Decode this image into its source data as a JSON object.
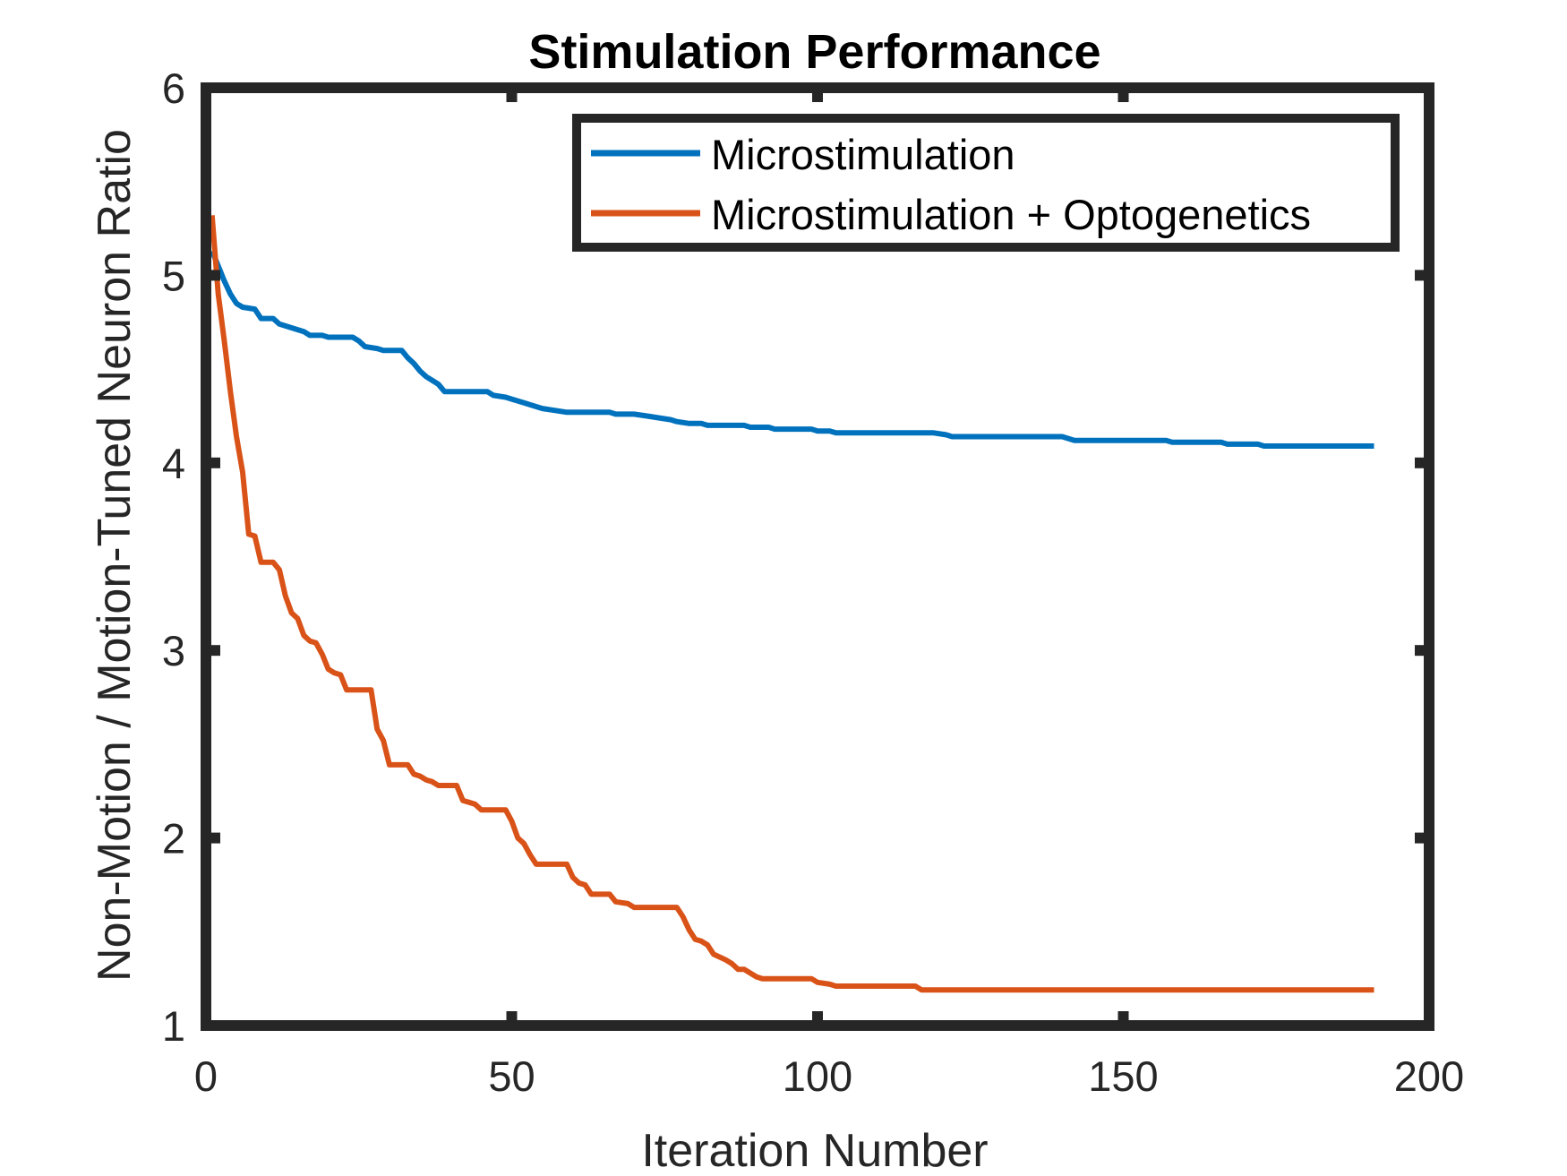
{
  "chart_data": {
    "type": "line",
    "title": "Stimulation Performance",
    "xlabel": "Iteration Number",
    "ylabel": "Non-Motion / Motion-Tuned Neuron Ratio",
    "xlim": [
      0,
      200
    ],
    "ylim": [
      1,
      6
    ],
    "xticks": [
      0,
      50,
      100,
      150,
      200
    ],
    "yticks": [
      1,
      2,
      3,
      4,
      5,
      6
    ],
    "grid": false,
    "legend": "top-right",
    "series": [
      {
        "name": "Microstimulation",
        "color": "#0072BD",
        "points": [
          [
            1,
            5.13
          ],
          [
            2,
            5.05
          ],
          [
            3,
            4.97
          ],
          [
            4,
            4.9
          ],
          [
            5,
            4.85
          ],
          [
            6,
            4.83
          ],
          [
            8,
            4.82
          ],
          [
            9,
            4.77
          ],
          [
            11,
            4.77
          ],
          [
            12,
            4.74
          ],
          [
            14,
            4.72
          ],
          [
            16,
            4.7
          ],
          [
            17,
            4.68
          ],
          [
            19,
            4.68
          ],
          [
            20,
            4.67
          ],
          [
            24,
            4.67
          ],
          [
            25,
            4.65
          ],
          [
            26,
            4.62
          ],
          [
            28,
            4.61
          ],
          [
            29,
            4.6
          ],
          [
            32,
            4.6
          ],
          [
            33,
            4.56
          ],
          [
            34,
            4.53
          ],
          [
            35,
            4.49
          ],
          [
            36,
            4.46
          ],
          [
            37,
            4.44
          ],
          [
            38,
            4.42
          ],
          [
            39,
            4.38
          ],
          [
            46,
            4.38
          ],
          [
            47,
            4.36
          ],
          [
            49,
            4.35
          ],
          [
            50,
            4.34
          ],
          [
            52,
            4.32
          ],
          [
            53,
            4.31
          ],
          [
            55,
            4.29
          ],
          [
            57,
            4.28
          ],
          [
            59,
            4.27
          ],
          [
            66,
            4.27
          ],
          [
            67,
            4.26
          ],
          [
            70,
            4.26
          ],
          [
            72,
            4.25
          ],
          [
            74,
            4.24
          ],
          [
            76,
            4.23
          ],
          [
            77,
            4.22
          ],
          [
            79,
            4.21
          ],
          [
            81,
            4.21
          ],
          [
            82,
            4.2
          ],
          [
            88,
            4.2
          ],
          [
            89,
            4.19
          ],
          [
            92,
            4.19
          ],
          [
            93,
            4.18
          ],
          [
            99,
            4.18
          ],
          [
            100,
            4.17
          ],
          [
            102,
            4.17
          ],
          [
            103,
            4.16
          ],
          [
            119,
            4.16
          ],
          [
            121,
            4.15
          ],
          [
            122,
            4.14
          ],
          [
            140,
            4.14
          ],
          [
            142,
            4.12
          ],
          [
            157,
            4.12
          ],
          [
            158,
            4.11
          ],
          [
            166,
            4.11
          ],
          [
            167,
            4.1
          ],
          [
            172,
            4.1
          ],
          [
            173,
            4.09
          ],
          [
            191,
            4.09
          ]
        ]
      },
      {
        "name": "Microstimulation + Optogenetics",
        "color": "#D95319",
        "points": [
          [
            1,
            5.32
          ],
          [
            2,
            4.9
          ],
          [
            3,
            4.65
          ],
          [
            4,
            4.38
          ],
          [
            5,
            4.14
          ],
          [
            6,
            3.95
          ],
          [
            7,
            3.62
          ],
          [
            8,
            3.61
          ],
          [
            9,
            3.47
          ],
          [
            11,
            3.47
          ],
          [
            12,
            3.43
          ],
          [
            13,
            3.29
          ],
          [
            14,
            3.2
          ],
          [
            15,
            3.17
          ],
          [
            16,
            3.08
          ],
          [
            17,
            3.05
          ],
          [
            18,
            3.04
          ],
          [
            19,
            2.98
          ],
          [
            20,
            2.9
          ],
          [
            21,
            2.88
          ],
          [
            22,
            2.87
          ],
          [
            23,
            2.79
          ],
          [
            27,
            2.79
          ],
          [
            28,
            2.58
          ],
          [
            29,
            2.52
          ],
          [
            30,
            2.39
          ],
          [
            33,
            2.39
          ],
          [
            34,
            2.34
          ],
          [
            35,
            2.33
          ],
          [
            36,
            2.31
          ],
          [
            37,
            2.3
          ],
          [
            38,
            2.28
          ],
          [
            41,
            2.28
          ],
          [
            42,
            2.2
          ],
          [
            43,
            2.19
          ],
          [
            44,
            2.18
          ],
          [
            45,
            2.15
          ],
          [
            49,
            2.15
          ],
          [
            50,
            2.09
          ],
          [
            51,
            2.0
          ],
          [
            52,
            1.97
          ],
          [
            53,
            1.91
          ],
          [
            54,
            1.86
          ],
          [
            59,
            1.86
          ],
          [
            60,
            1.79
          ],
          [
            61,
            1.76
          ],
          [
            62,
            1.75
          ],
          [
            63,
            1.7
          ],
          [
            66,
            1.7
          ],
          [
            67,
            1.66
          ],
          [
            69,
            1.65
          ],
          [
            70,
            1.63
          ],
          [
            77,
            1.63
          ],
          [
            78,
            1.58
          ],
          [
            79,
            1.51
          ],
          [
            80,
            1.46
          ],
          [
            81,
            1.45
          ],
          [
            82,
            1.43
          ],
          [
            83,
            1.38
          ],
          [
            85,
            1.35
          ],
          [
            86,
            1.33
          ],
          [
            87,
            1.3
          ],
          [
            88,
            1.3
          ],
          [
            89,
            1.28
          ],
          [
            90,
            1.26
          ],
          [
            91,
            1.25
          ],
          [
            99,
            1.25
          ],
          [
            100,
            1.23
          ],
          [
            102,
            1.22
          ],
          [
            103,
            1.21
          ],
          [
            116,
            1.21
          ],
          [
            117,
            1.19
          ],
          [
            191,
            1.19
          ]
        ]
      }
    ]
  }
}
